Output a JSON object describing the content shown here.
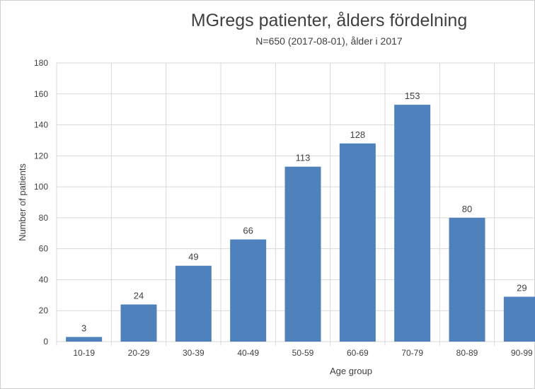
{
  "chart_data": {
    "type": "bar",
    "title": "MGregs patienter, ålders fördelning",
    "subtitle": "N=650 (2017-08-01), ålder i 2017",
    "xlabel": "Age group",
    "ylabel": "Number of patients",
    "categories": [
      "10-19",
      "20-29",
      "30-39",
      "40-49",
      "50-59",
      "60-69",
      "70-79",
      "80-89",
      "90-99"
    ],
    "values": [
      3,
      24,
      49,
      66,
      113,
      128,
      153,
      80,
      29
    ],
    "ylim": [
      0,
      180
    ],
    "yticks": [
      0,
      20,
      40,
      60,
      80,
      100,
      120,
      140,
      160,
      180
    ],
    "grid": true,
    "legend": "none",
    "bar_color": "#4f81bd",
    "grid_color": "#d9d9d9"
  }
}
